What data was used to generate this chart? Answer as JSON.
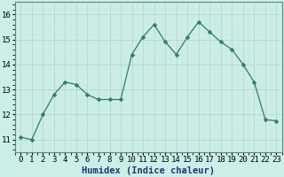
{
  "x": [
    0,
    1,
    2,
    3,
    4,
    5,
    6,
    7,
    8,
    9,
    10,
    11,
    12,
    13,
    14,
    15,
    16,
    17,
    18,
    19,
    20,
    21,
    22,
    23
  ],
  "y": [
    11.1,
    11.0,
    12.0,
    12.8,
    13.3,
    13.2,
    12.8,
    12.6,
    12.6,
    12.6,
    14.4,
    15.1,
    15.6,
    14.9,
    14.4,
    15.1,
    15.7,
    15.3,
    14.9,
    14.6,
    14.0,
    13.3,
    11.8,
    11.75
  ],
  "line_color": "#2e7d6e",
  "marker": "D",
  "marker_size": 2.5,
  "bg_color": "#cceee8",
  "grid_color_major": "#b0d0cc",
  "grid_color_minor": "#c8e4e0",
  "xlabel": "Humidex (Indice chaleur)",
  "ylim": [
    10.5,
    16.5
  ],
  "xlim": [
    -0.5,
    23.5
  ],
  "yticks": [
    11,
    12,
    13,
    14,
    15,
    16
  ],
  "xlabel_fontsize": 7.5,
  "tick_fontsize": 6.5
}
